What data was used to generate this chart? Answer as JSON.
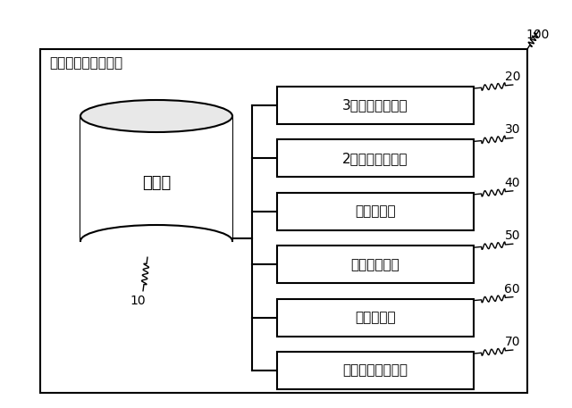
{
  "device_label": "学習データ生成装置",
  "memory_label": "記憶部",
  "memory_number": "10",
  "outer_label": "100",
  "modules": [
    {
      "label": "3次元空間生成部",
      "number": "20"
    },
    {
      "label": "2次元物体描画部",
      "number": "30"
    },
    {
      "label": "領域算出部",
      "number": "40"
    },
    {
      "label": "ラベル生成部",
      "number": "50"
    },
    {
      "label": "背景合成部",
      "number": "60"
    },
    {
      "label": "学習データ生成部",
      "number": "70"
    }
  ],
  "bg_color": "#ffffff",
  "line_color": "#000000",
  "text_color": "#000000"
}
